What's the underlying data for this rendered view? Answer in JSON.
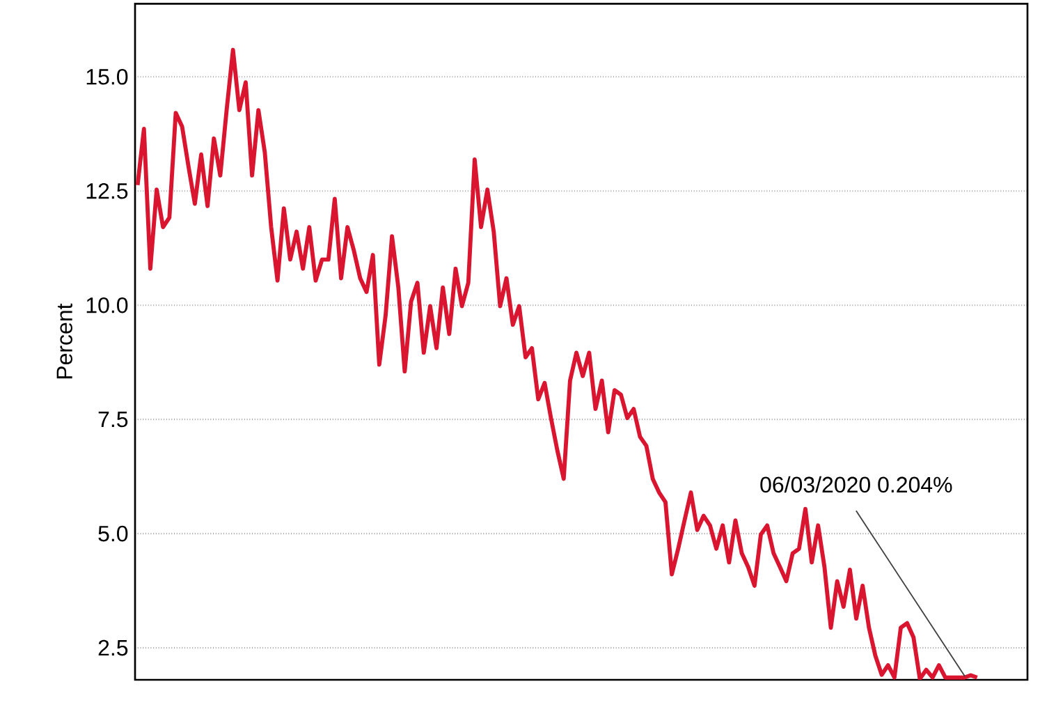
{
  "chart_data": {
    "type": "line",
    "ylabel": "Percent",
    "color": "#d9152f",
    "line_style": "solid",
    "marker": "none",
    "grid": "y",
    "tick_labels": "y",
    "ylim": [
      1.8,
      16.6
    ],
    "yticks": [
      {
        "value": 2.5,
        "label": "2.5"
      },
      {
        "value": 5,
        "label": "5.0"
      },
      {
        "value": 7.5,
        "label": "7.5"
      },
      {
        "value": 10,
        "label": "10.0"
      },
      {
        "value": 12.5,
        "label": "12.5"
      },
      {
        "value": 15,
        "label": "15.0"
      }
    ],
    "categories": [
      null,
      null,
      null,
      null,
      null,
      null,
      null,
      null,
      null,
      null,
      null,
      null,
      null,
      null,
      null,
      null,
      null,
      null,
      null,
      null,
      null,
      null,
      null,
      null,
      null,
      null,
      null,
      null,
      null,
      null,
      null,
      null,
      null,
      null,
      null,
      null,
      null,
      null,
      null,
      null,
      null,
      null,
      null,
      null,
      null,
      null,
      null,
      null,
      null,
      null,
      null,
      null,
      null,
      null,
      null,
      null,
      null,
      null,
      null,
      null,
      null,
      null,
      null,
      null,
      null,
      null,
      null,
      null,
      null,
      null,
      null,
      null,
      null,
      null,
      null,
      null,
      null,
      null,
      null,
      null,
      null,
      null,
      null,
      null,
      null,
      null,
      null,
      null,
      null,
      null,
      null,
      null,
      null,
      null,
      null,
      null,
      null,
      null,
      null,
      null,
      null,
      null,
      null,
      null,
      null,
      null,
      null,
      null,
      null,
      null,
      null,
      null,
      null,
      null,
      null,
      null,
      null,
      null,
      null,
      null,
      null,
      null,
      null,
      null,
      null,
      null,
      null,
      null,
      null,
      null,
      null,
      null,
      null
    ],
    "values": [
      12.63,
      13.86,
      10.8,
      12.53,
      11.71,
      11.92,
      14.21,
      13.91,
      13.04,
      12.22,
      13.3,
      12.17,
      13.65,
      12.84,
      14.27,
      15.59,
      14.27,
      14.88,
      12.84,
      14.27,
      13.35,
      11.71,
      10.54,
      12.12,
      11.0,
      11.61,
      10.8,
      11.71,
      10.54,
      11.0,
      11.0,
      12.33,
      10.59,
      11.71,
      11.2,
      10.59,
      10.29,
      11.1,
      8.7,
      9.78,
      11.51,
      10.39,
      8.55,
      10.08,
      10.49,
      8.96,
      9.98,
      9.06,
      10.39,
      9.37,
      10.8,
      9.98,
      10.49,
      13.19,
      11.71,
      12.53,
      11.61,
      9.98,
      10.59,
      9.57,
      9.98,
      8.86,
      9.06,
      7.94,
      8.3,
      7.53,
      6.82,
      6.2,
      8.35,
      8.96,
      8.45,
      8.96,
      7.73,
      8.35,
      7.22,
      8.14,
      8.04,
      7.53,
      7.73,
      7.12,
      6.92,
      6.2,
      5.9,
      5.69,
      4.11,
      4.67,
      5.29,
      5.9,
      5.08,
      5.39,
      5.18,
      4.67,
      5.18,
      4.37,
      5.29,
      4.57,
      4.27,
      3.86,
      4.98,
      5.18,
      4.57,
      4.27,
      3.96,
      4.57,
      4.67,
      5.54,
      4.37,
      5.18,
      4.27,
      2.94,
      3.96,
      3.4,
      4.21,
      3.14,
      3.86,
      2.94,
      2.33,
      1.91,
      2.12,
      1.85,
      2.94,
      3.04,
      2.73,
      1.82,
      2.02,
      1.85,
      2.12,
      1.85,
      1.85,
      1.85,
      1.85,
      1.9,
      1.85
    ],
    "annotations": [
      "06/03/2020 0.204%"
    ]
  }
}
